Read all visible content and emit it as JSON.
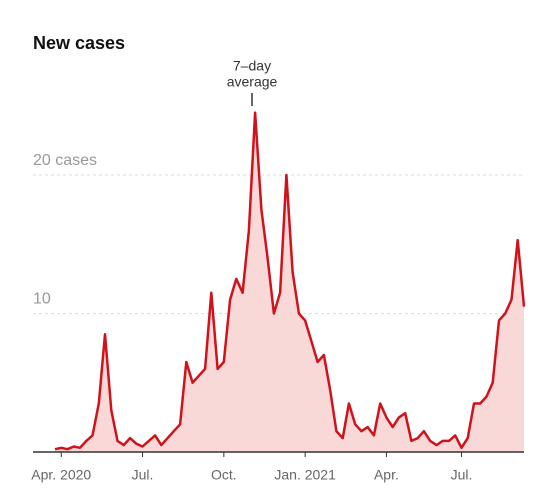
{
  "chart_data": {
    "type": "line",
    "title": "New cases",
    "annotation": [
      "7–day",
      "average"
    ],
    "categories": [
      null,
      "Apr. 2020",
      null,
      null,
      null,
      null,
      null,
      null,
      null,
      null,
      null,
      null,
      null,
      null,
      "Jul.",
      null,
      null,
      null,
      null,
      null,
      null,
      null,
      null,
      null,
      null,
      null,
      null,
      "Oct.",
      null,
      null,
      null,
      null,
      null,
      null,
      null,
      null,
      null,
      null,
      null,
      null,
      "Jan. 2021",
      null,
      null,
      null,
      null,
      null,
      null,
      null,
      null,
      null,
      null,
      null,
      null,
      "Apr.",
      null,
      null,
      null,
      null,
      null,
      null,
      null,
      null,
      null,
      null,
      null,
      "Jul.",
      null,
      null,
      null,
      null,
      null,
      null,
      null,
      null,
      null,
      null
    ],
    "series": [
      {
        "name": "7–day average",
        "color": "#d0121b",
        "fill": "#f9d9d8",
        "values": [
          0.2,
          0.3,
          0.2,
          0.4,
          0.3,
          0.8,
          1.2,
          3.5,
          8.5,
          3,
          0.8,
          0.5,
          1,
          0.6,
          0.4,
          0.8,
          1.2,
          0.5,
          1,
          1.5,
          2,
          6.5,
          5,
          5.5,
          6,
          11.5,
          6,
          6.5,
          11,
          12.5,
          11.5,
          16,
          24.5,
          17.5,
          14,
          10,
          11.5,
          20,
          13,
          10,
          9.5,
          8,
          6.5,
          7,
          4.5,
          1.5,
          1,
          3.5,
          2,
          1.5,
          1.8,
          1.2,
          3.5,
          2.5,
          1.8,
          2.5,
          2.8,
          0.8,
          1,
          1.5,
          0.8,
          0.5,
          0.8,
          0.8,
          1.2,
          0.3,
          1,
          3.5,
          3.5,
          4,
          5,
          9.5,
          10,
          11,
          15.3,
          10.5
        ]
      }
    ],
    "ylim": [
      0,
      27
    ],
    "yticks": [
      {
        "value": 10,
        "label": "10"
      },
      {
        "value": 20,
        "label": "20 cases"
      }
    ],
    "grid": true
  }
}
